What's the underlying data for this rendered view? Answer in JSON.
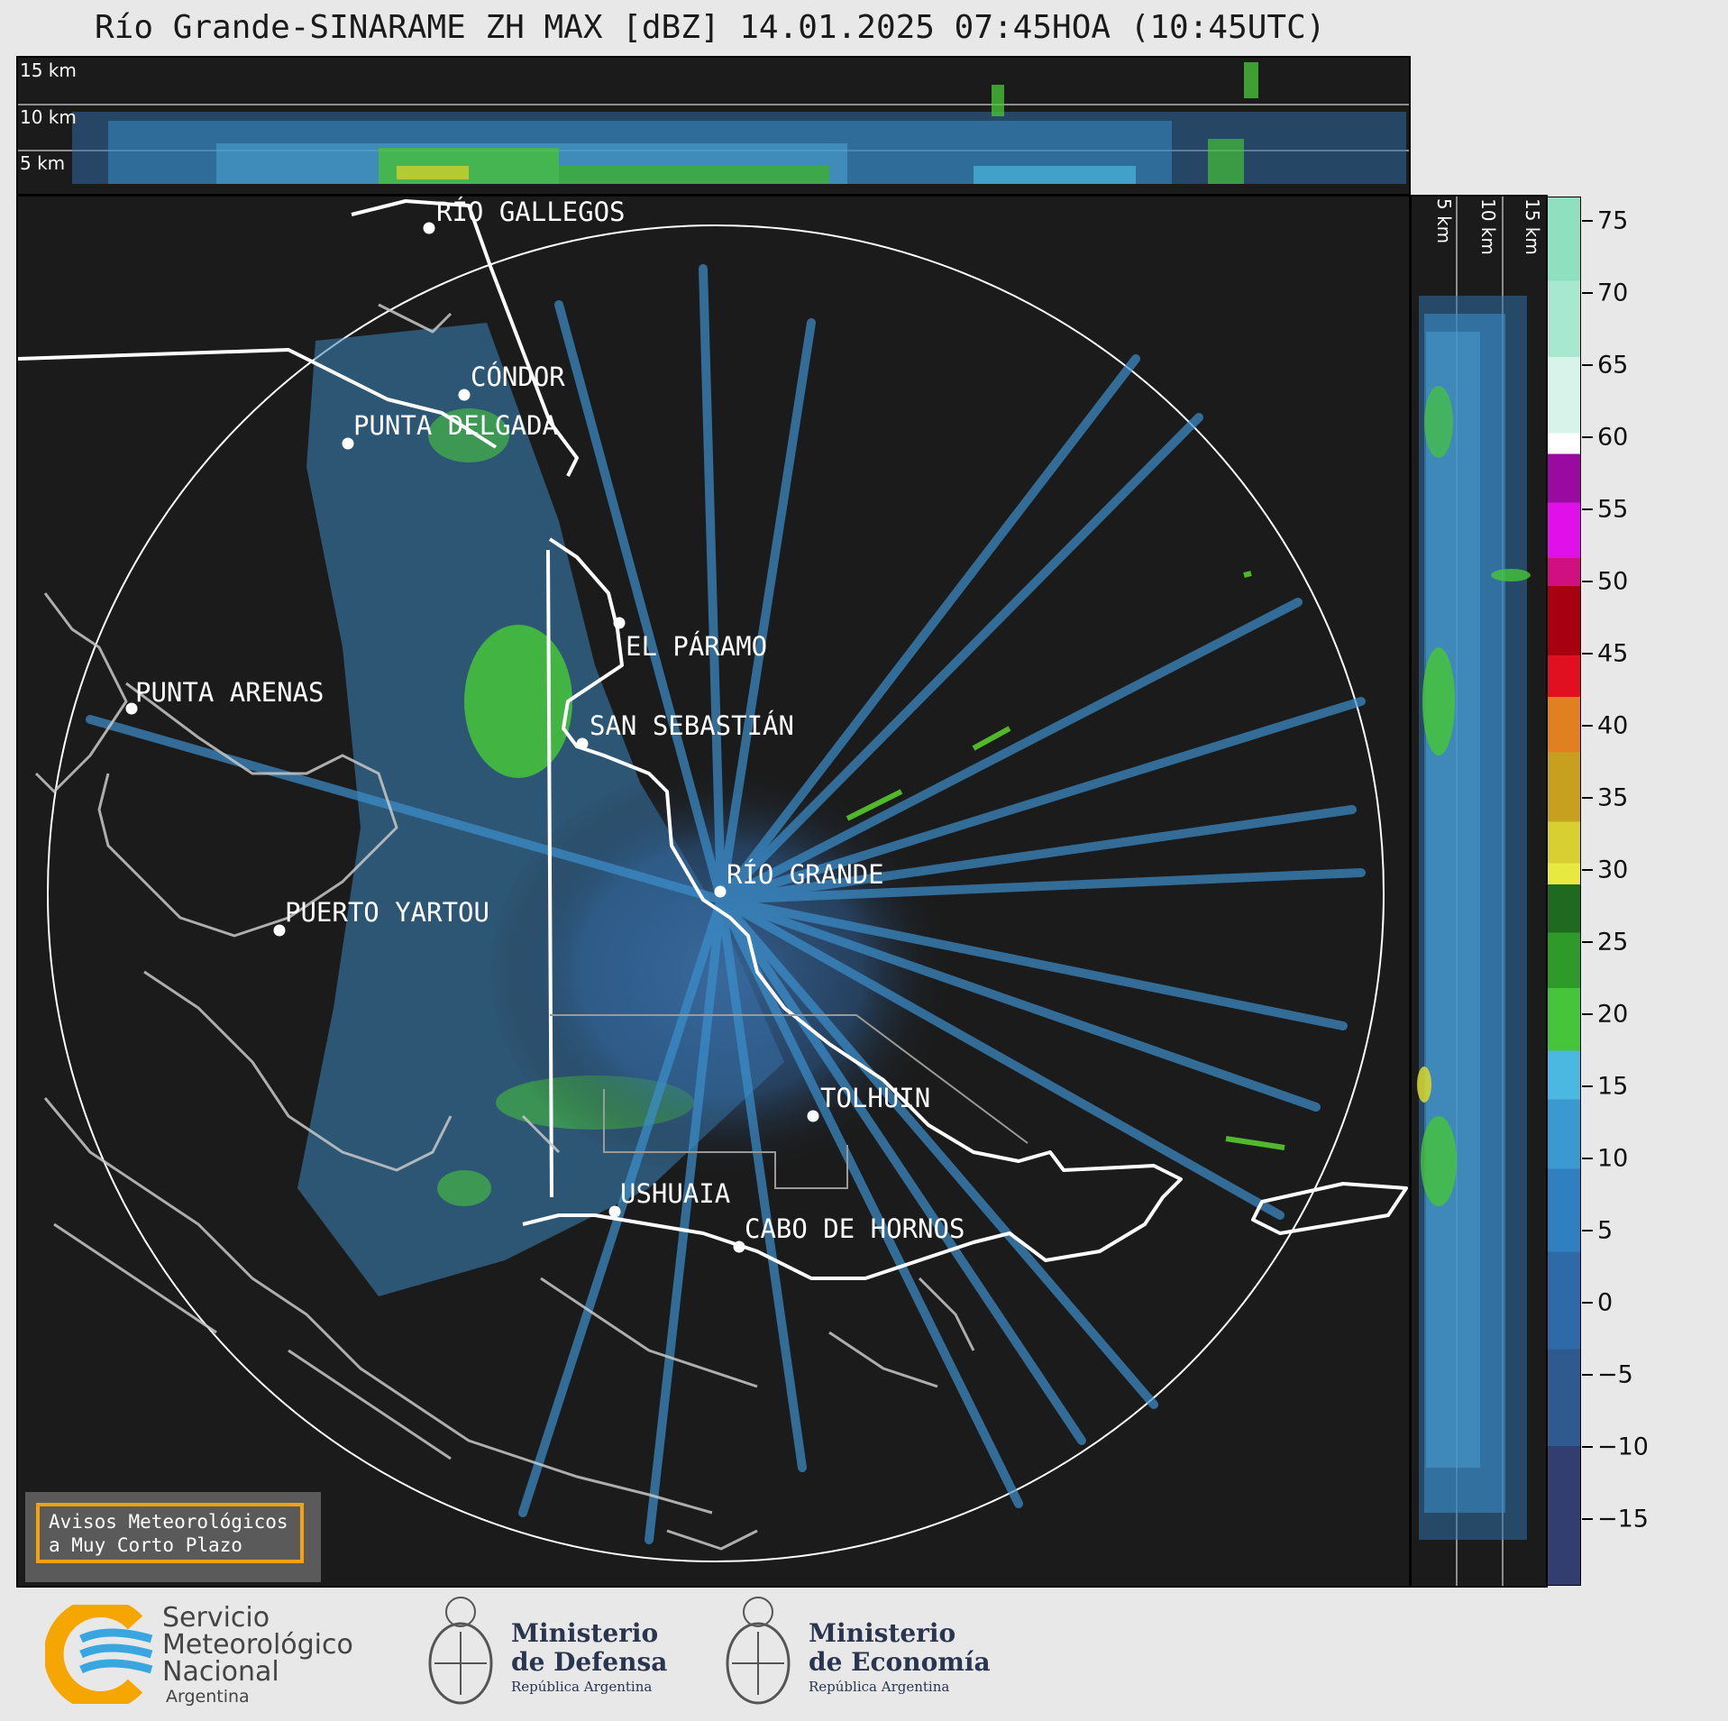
{
  "title": "Río Grande-SINARAME ZH MAX [dBZ] 14.01.2025 07:45HOA (10:45UTC)",
  "top_altitude_labels": [
    "15 km",
    "10 km",
    "5 km"
  ],
  "side_altitude_labels": [
    "5 km",
    "10 km",
    "15 km"
  ],
  "colorbar": {
    "ticks": [
      "75",
      "70",
      "65",
      "60",
      "55",
      "50",
      "45",
      "40",
      "35",
      "30",
      "25",
      "20",
      "15",
      "10",
      "5",
      "0",
      "−5",
      "−10",
      "−15"
    ]
  },
  "cities": [
    {
      "name": "RÍO GALLEGOS"
    },
    {
      "name": "CÓNDOR"
    },
    {
      "name": "PUNTA DELGADA"
    },
    {
      "name": "EL PÁRAMO"
    },
    {
      "name": "PUNTA ARENAS"
    },
    {
      "name": "SAN SEBASTIÁN"
    },
    {
      "name": "RÍO GRANDE"
    },
    {
      "name": "PUERTO YARTOU"
    },
    {
      "name": "TOLHUIN"
    },
    {
      "name": "USHUAIA"
    },
    {
      "name": "CABO DE HORNOS"
    }
  ],
  "avisos": {
    "line1": "Avisos Meteorológicos",
    "line2": "a Muy Corto Plazo"
  },
  "logos": {
    "smn": {
      "line1": "Servicio",
      "line2": "Meteorológico",
      "line3": "Nacional",
      "line4": "Argentina"
    },
    "defensa": {
      "line1": "Ministerio",
      "line2": "de Defensa",
      "line3": "República Argentina"
    },
    "economia": {
      "line1": "Ministerio",
      "line2": "de Economía",
      "line3": "República Argentina"
    }
  }
}
